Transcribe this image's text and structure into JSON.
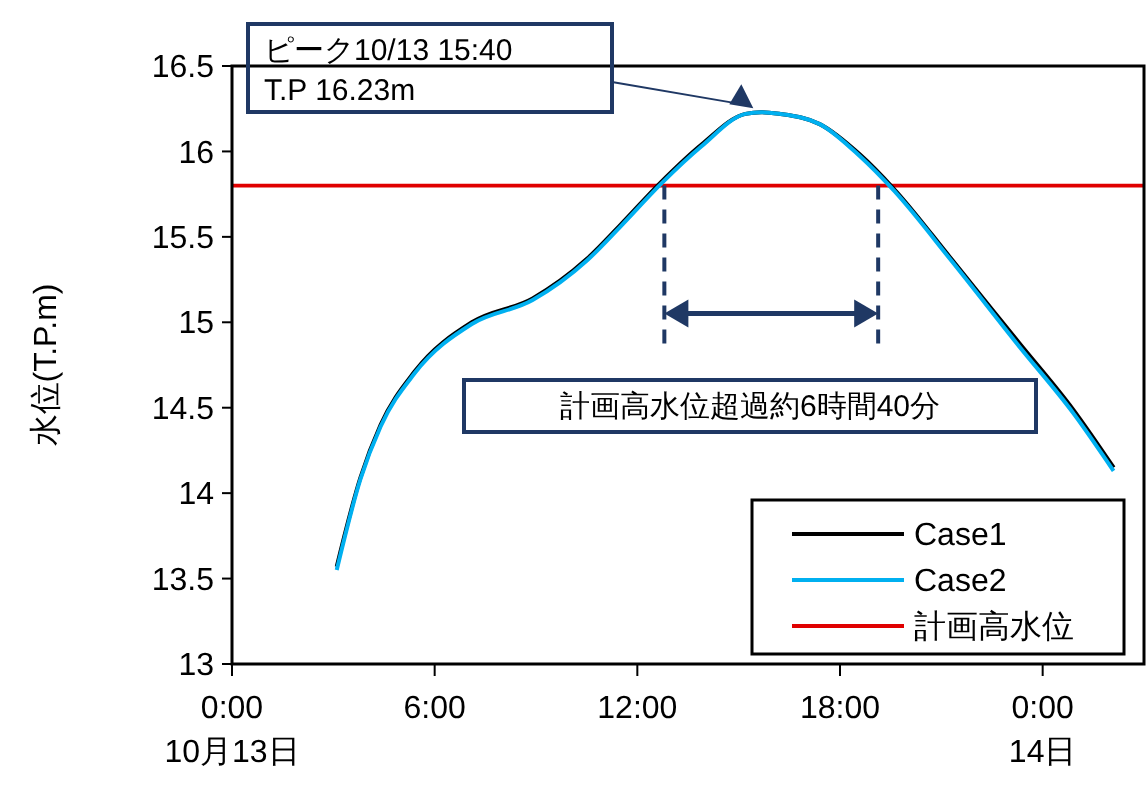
{
  "chart_data": {
    "type": "line",
    "ylabel": "水位(T.P.m)",
    "xlim": [
      0,
      27
    ],
    "xticks": [
      {
        "value": 0,
        "label": "0:00\n10月13日"
      },
      {
        "value": 6,
        "label": "6:00"
      },
      {
        "value": 12,
        "label": "12:00"
      },
      {
        "value": 18,
        "label": "18:00"
      },
      {
        "value": 24,
        "label": "0:00\n14日"
      }
    ],
    "ylim": [
      13,
      16.5
    ],
    "yticks": [
      13,
      13.5,
      14,
      14.5,
      15,
      15.5,
      16,
      16.5
    ],
    "grid": false,
    "legend": "bottom right",
    "marker": "none",
    "line_style": "solid",
    "x": [
      3.1,
      3.8,
      4.4,
      5.4,
      7.1,
      8.9,
      10.5,
      11.5,
      12.7,
      13.9,
      15.2,
      15.67,
      16.2,
      17.4,
      18.6,
      19.6,
      21.3,
      23.3,
      24.9,
      26.1
    ],
    "series": [
      {
        "name": "Case1",
        "color": "#000000",
        "values": [
          13.57,
          14.09,
          14.4,
          14.71,
          15.0,
          15.14,
          15.37,
          15.57,
          15.82,
          16.04,
          16.22,
          16.23,
          16.22,
          16.16,
          15.98,
          15.78,
          15.37,
          14.88,
          14.49,
          14.15
        ]
      },
      {
        "name": "Case2",
        "color": "#00b0f0",
        "values": [
          13.55,
          14.08,
          14.39,
          14.7,
          14.99,
          15.13,
          15.36,
          15.56,
          15.81,
          16.03,
          16.22,
          16.23,
          16.22,
          16.16,
          15.97,
          15.77,
          15.36,
          14.86,
          14.47,
          14.13
        ]
      }
    ],
    "ref_lines": [
      {
        "axis": "y",
        "value": 15.8,
        "label": "計画高水位",
        "color": "#e00000",
        "line_style": "solid"
      },
      {
        "axis": "x",
        "value": 12.8,
        "label": null,
        "color": "#1f3864",
        "line_style": "dashed"
      },
      {
        "axis": "x",
        "value": 19.13,
        "label": null,
        "color": "#1f3864",
        "line_style": "dashed"
      }
    ],
    "annotations": [
      "ピーク10/13 15:40\nT.P 16.23m",
      "計画高水位超過約6時間40分"
    ]
  }
}
